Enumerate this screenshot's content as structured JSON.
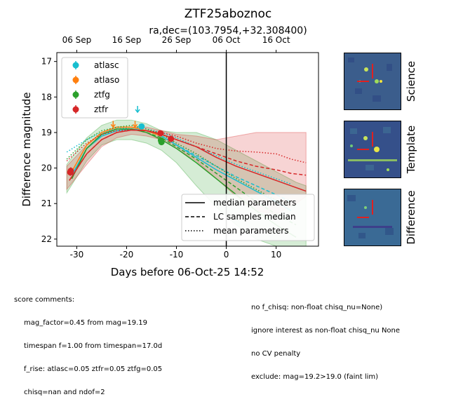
{
  "chart_data": {
    "type": "scatter",
    "title": "ZTF25aboznoc",
    "subtitle": "ra,dec=(103.7954,+32.308400)",
    "xlabel": "Days before 06-Oct-25 14:52",
    "ylabel": "Difference magnitude",
    "xlim": [
      -34,
      18.5
    ],
    "ylim": [
      22.2,
      16.75
    ],
    "y_inverted": true,
    "xticks": [
      -30,
      -20,
      -10,
      0,
      10
    ],
    "yticks": [
      17,
      18,
      19,
      20,
      21,
      22
    ],
    "top_axis_ticks": [
      {
        "x": -30,
        "label": "06 Sep"
      },
      {
        "x": -20,
        "label": "16 Sep"
      },
      {
        "x": -10,
        "label": "26 Sep"
      },
      {
        "x": 0,
        "label": "06 Oct"
      },
      {
        "x": 10,
        "label": "16 Oct"
      }
    ],
    "vline_x": 0,
    "series": [
      {
        "name": "atlasc",
        "color": "#17becf",
        "points": [
          {
            "x": -17,
            "y": 18.83,
            "err": 0.05
          }
        ],
        "upper_limits": [
          {
            "x": -17.8,
            "y": 18.35
          }
        ],
        "median_curve": [
          [
            -31,
            20.2
          ],
          [
            -28,
            19.45
          ],
          [
            -25,
            19.1
          ],
          [
            -22,
            18.95
          ],
          [
            -19,
            18.9
          ],
          [
            -16,
            18.95
          ],
          [
            -13,
            19.1
          ],
          [
            -10,
            19.35
          ],
          [
            -6,
            19.7
          ],
          [
            -2,
            20.05
          ],
          [
            2,
            20.35
          ],
          [
            6,
            20.65
          ],
          [
            10,
            20.95
          ],
          [
            13,
            21.2
          ]
        ],
        "lc_median_curve": [
          [
            -31,
            20.2
          ],
          [
            -28,
            19.45
          ],
          [
            -25,
            19.1
          ],
          [
            -22,
            18.95
          ],
          [
            -19,
            18.9
          ],
          [
            -16,
            18.95
          ],
          [
            -13,
            19.1
          ],
          [
            -10,
            19.35
          ],
          [
            -6,
            19.65
          ],
          [
            -2,
            19.95
          ],
          [
            2,
            20.25
          ],
          [
            6,
            20.5
          ],
          [
            10,
            20.75
          ],
          [
            13,
            20.95
          ]
        ],
        "mean_curve": [
          [
            -32,
            19.55
          ],
          [
            -28,
            19.2
          ],
          [
            -25,
            19.0
          ],
          [
            -22,
            18.9
          ],
          [
            -19,
            18.85
          ],
          [
            -16,
            18.9
          ],
          [
            -13,
            19.0
          ],
          [
            -10,
            19.15
          ],
          [
            -6,
            19.4
          ],
          [
            -2,
            19.65
          ],
          [
            2,
            19.9
          ],
          [
            6,
            20.1
          ],
          [
            10,
            20.3
          ],
          [
            13,
            20.45
          ]
        ]
      },
      {
        "name": "atlaso",
        "color": "#ff7f0e",
        "points": [],
        "upper_limits": [
          {
            "x": -22.7,
            "y": 18.77
          },
          {
            "x": -18.3,
            "y": 18.77
          }
        ],
        "median_curve": [
          [
            -31,
            20.1
          ],
          [
            -28,
            19.35
          ],
          [
            -25,
            19.0
          ],
          [
            -22,
            18.85
          ],
          [
            -19,
            18.85
          ],
          [
            -16,
            18.95
          ],
          [
            -13,
            19.1
          ]
        ],
        "lc_median_curve": [],
        "mean_curve": []
      },
      {
        "name": "ztfg",
        "color": "#2ca02c",
        "points": [
          {
            "x": -13.1,
            "y": 19.22,
            "err": 0.07
          },
          {
            "x": -13.0,
            "y": 19.27,
            "err": 0.07
          }
        ],
        "upper_limits": [],
        "median_curve": [
          [
            -31,
            20.3
          ],
          [
            -28,
            19.45
          ],
          [
            -25,
            19.05
          ],
          [
            -22,
            18.9
          ],
          [
            -19,
            18.9
          ],
          [
            -16,
            19.0
          ],
          [
            -13,
            19.2
          ],
          [
            -10,
            19.45
          ],
          [
            -6,
            19.85
          ],
          [
            -2,
            20.3
          ],
          [
            2,
            20.75
          ],
          [
            6,
            21.2
          ],
          [
            10,
            21.6
          ],
          [
            14,
            21.95
          ]
        ],
        "lc_median_curve": [
          [
            -31,
            20.3
          ],
          [
            -28,
            19.45
          ],
          [
            -25,
            19.05
          ],
          [
            -22,
            18.9
          ],
          [
            -19,
            18.9
          ],
          [
            -16,
            19.0
          ],
          [
            -13,
            19.15
          ],
          [
            -10,
            19.4
          ],
          [
            -6,
            19.75
          ],
          [
            -2,
            20.15
          ],
          [
            2,
            20.55
          ],
          [
            6,
            20.95
          ],
          [
            10,
            21.3
          ],
          [
            14,
            21.6
          ]
        ],
        "mean_curve": [
          [
            -32,
            19.75
          ],
          [
            -28,
            19.2
          ],
          [
            -25,
            18.95
          ],
          [
            -22,
            18.85
          ],
          [
            -19,
            18.8
          ],
          [
            -16,
            18.9
          ],
          [
            -13,
            19.05
          ],
          [
            -10,
            19.3
          ],
          [
            -6,
            19.6
          ],
          [
            -2,
            19.95
          ],
          [
            2,
            20.3
          ],
          [
            6,
            20.6
          ],
          [
            10,
            20.9
          ],
          [
            14,
            21.1
          ]
        ],
        "band": {
          "x": [
            -32,
            -28,
            -25,
            -22,
            -19,
            -16,
            -13,
            -10,
            -6,
            -2,
            2,
            6,
            10,
            14,
            16
          ],
          "lo": [
            19.9,
            19.15,
            18.8,
            18.65,
            18.65,
            18.75,
            18.95,
            19.0,
            19.0,
            19.2,
            19.5,
            19.8,
            20.1,
            20.4,
            20.5
          ],
          "hi": [
            20.7,
            19.8,
            19.35,
            19.2,
            19.2,
            19.3,
            19.5,
            19.85,
            20.5,
            21.1,
            21.6,
            22.0,
            22.2,
            22.2,
            22.2
          ]
        }
      },
      {
        "name": "ztfr",
        "color": "#d62728",
        "points": [
          {
            "x": -31.3,
            "y": 20.12,
            "err": 0.1
          },
          {
            "x": -31.2,
            "y": 20.08,
            "err": 0.1
          },
          {
            "x": -13.2,
            "y": 19.02,
            "err": 0.05
          },
          {
            "x": -11.1,
            "y": 19.18,
            "err": 0.05
          }
        ],
        "upper_limits": [],
        "median_curve": [
          [
            -31.5,
            20.35
          ],
          [
            -28,
            19.6
          ],
          [
            -25,
            19.2
          ],
          [
            -22,
            19.0
          ],
          [
            -19,
            18.93
          ],
          [
            -16,
            18.95
          ],
          [
            -13,
            19.05
          ],
          [
            -10,
            19.2
          ],
          [
            -6,
            19.4
          ],
          [
            -2,
            19.7
          ],
          [
            2,
            19.95
          ],
          [
            6,
            20.15
          ],
          [
            10,
            20.35
          ],
          [
            13,
            20.5
          ],
          [
            16,
            20.65
          ]
        ],
        "lc_median_curve": [
          [
            -31.5,
            20.35
          ],
          [
            -28,
            19.6
          ],
          [
            -25,
            19.2
          ],
          [
            -22,
            19.0
          ],
          [
            -19,
            18.93
          ],
          [
            -16,
            18.95
          ],
          [
            -13,
            19.05
          ],
          [
            -10,
            19.2
          ],
          [
            -6,
            19.4
          ],
          [
            -2,
            19.6
          ],
          [
            2,
            19.8
          ],
          [
            6,
            19.95
          ],
          [
            10,
            20.05
          ],
          [
            13,
            20.15
          ],
          [
            16,
            20.2
          ]
        ],
        "mean_curve": [
          [
            -32,
            19.8
          ],
          [
            -28,
            19.3
          ],
          [
            -25,
            19.05
          ],
          [
            -22,
            18.95
          ],
          [
            -19,
            18.92
          ],
          [
            -16,
            18.95
          ],
          [
            -13,
            19.0
          ],
          [
            -10,
            19.1
          ],
          [
            -6,
            19.3
          ],
          [
            -2,
            19.45
          ],
          [
            2,
            19.52
          ],
          [
            6,
            19.55
          ],
          [
            10,
            19.6
          ],
          [
            13,
            19.75
          ],
          [
            16,
            19.85
          ]
        ],
        "band": {
          "x": [
            -32,
            -28,
            -25,
            -22,
            -19,
            -16,
            -13,
            -10,
            -6,
            -2,
            2,
            6,
            10,
            14,
            16
          ],
          "lo": [
            19.95,
            19.35,
            19.0,
            18.85,
            18.85,
            18.85,
            18.95,
            19.05,
            19.1,
            19.2,
            19.1,
            19.0,
            19.0,
            19.0,
            19.0
          ],
          "hi": [
            20.6,
            19.9,
            19.4,
            19.15,
            19.05,
            19.1,
            19.2,
            19.45,
            19.8,
            20.3,
            20.8,
            21.2,
            21.3,
            21.0,
            20.8
          ]
        }
      }
    ],
    "legend_upper_left": {
      "placement": "upper-left",
      "entries": [
        {
          "label": "atlasc",
          "color": "#17becf"
        },
        {
          "label": "atlaso",
          "color": "#ff7f0e"
        },
        {
          "label": "ztfg",
          "color": "#2ca02c"
        },
        {
          "label": "ztfr",
          "color": "#d62728"
        }
      ]
    },
    "legend_lower_right": {
      "placement": "lower-right",
      "entries": [
        {
          "label": "median parameters",
          "style": "solid"
        },
        {
          "label": "LC samples median",
          "style": "dashed"
        },
        {
          "label": "mean parameters",
          "style": "dotted"
        }
      ]
    }
  },
  "cutouts": [
    {
      "label": "Science"
    },
    {
      "label": "Template"
    },
    {
      "label": "Difference"
    }
  ],
  "comments": {
    "heading": "score comments:",
    "left": [
      "mag_factor=0.45 from mag=19.19",
      "timespan f=1.00 from timespan=17.0d",
      "f_rise: atlasc=0.05 ztfr=0.05 ztfg=0.05",
      "chisq=nan and ndof=2"
    ],
    "right": [
      "no f_chisq: non-float chisq_nu=None)",
      "ignore interest as non-float chisq_nu None",
      "no CV penalty",
      "exclude: mag=19.2>19.0 (faint lim)"
    ]
  }
}
